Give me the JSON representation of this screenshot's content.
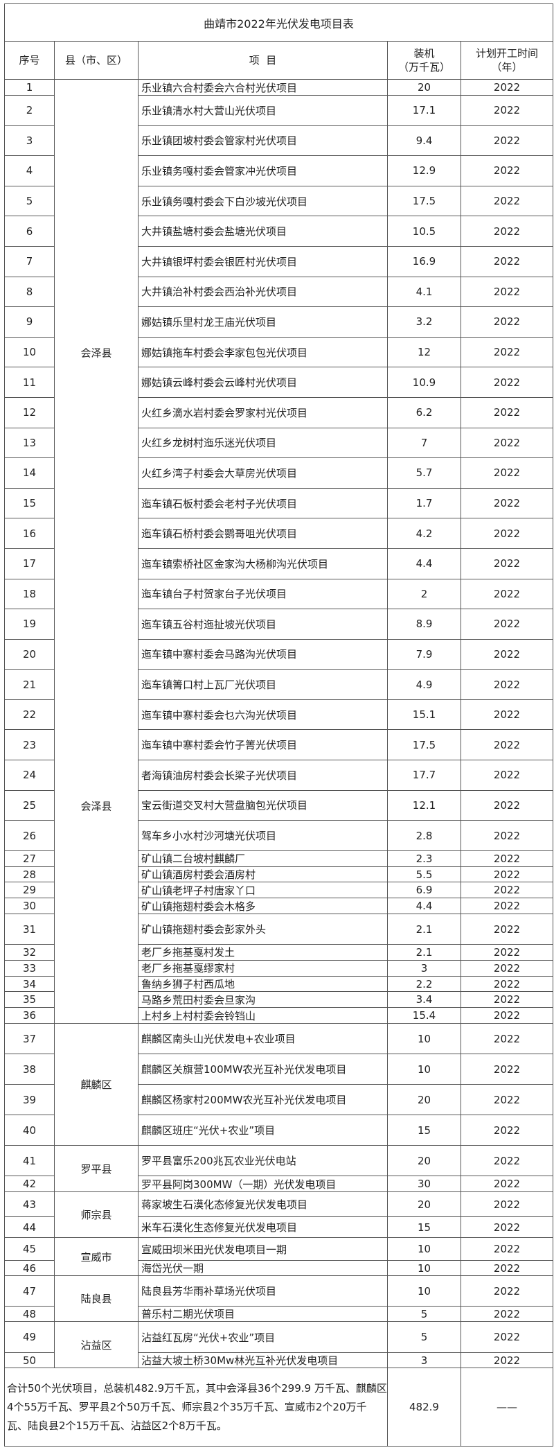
{
  "title": "曲靖市2022年光伏发电项目表",
  "headers": {
    "no": "序号",
    "county": "县（市、区）",
    "project": "项  目",
    "capacity_line1": "装机",
    "capacity_line2": "（万千瓦）",
    "year_line1": "计划开工时间",
    "year_line2": "（年）"
  },
  "county_groups": [
    {
      "labels": [
        "会泽县",
        "会泽县"
      ],
      "from": 1,
      "to": 36
    },
    {
      "labels": [
        "麒麟区"
      ],
      "from": 37,
      "to": 40
    },
    {
      "labels": [
        "罗平县"
      ],
      "from": 41,
      "to": 42
    },
    {
      "labels": [
        "师宗县"
      ],
      "from": 43,
      "to": 44
    },
    {
      "labels": [
        "宣威市"
      ],
      "from": 45,
      "to": 46
    },
    {
      "labels": [
        "陆良县"
      ],
      "from": 47,
      "to": 48
    },
    {
      "labels": [
        "沾益区"
      ],
      "from": 49,
      "to": 50
    }
  ],
  "rows": [
    {
      "no": "1",
      "project": "乐业镇六合村委会六合村光伏项目",
      "capacity": "20",
      "year": "2022"
    },
    {
      "no": "2",
      "project": "乐业镇清水村大营山光伏项目",
      "capacity": "17.1",
      "year": "2022"
    },
    {
      "no": "3",
      "project": "乐业镇团坡村委会管家村光伏项目",
      "capacity": "9.4",
      "year": "2022"
    },
    {
      "no": "4",
      "project": "乐业镇务嘎村委会管家冲光伏项目",
      "capacity": "12.9",
      "year": "2022"
    },
    {
      "no": "5",
      "project": "乐业镇务嘎村委会下白沙坡光伏项目",
      "capacity": "17.5",
      "year": "2022"
    },
    {
      "no": "6",
      "project": "大井镇盐塘村委会盐塘光伏项目",
      "capacity": "10.5",
      "year": "2022"
    },
    {
      "no": "7",
      "project": "大井镇银坪村委会银匠村光伏项目",
      "capacity": "16.9",
      "year": "2022"
    },
    {
      "no": "8",
      "project": "大井镇治补村委会西治补光伏项目",
      "capacity": "4.1",
      "year": "2022"
    },
    {
      "no": "9",
      "project": "娜姑镇乐里村龙王庙光伏项目",
      "capacity": "3.2",
      "year": "2022"
    },
    {
      "no": "10",
      "project": "娜姑镇拖车村委会李家包包光伏项目",
      "capacity": "12",
      "year": "2022"
    },
    {
      "no": "11",
      "project": "娜姑镇云峰村委会云峰村光伏项目",
      "capacity": "10.9",
      "year": "2022"
    },
    {
      "no": "12",
      "project": "火红乡滴水岩村委会罗家村光伏项目",
      "capacity": "6.2",
      "year": "2022"
    },
    {
      "no": "13",
      "project": "火红乡龙树村迤乐迷光伏项目",
      "capacity": "7",
      "year": "2022"
    },
    {
      "no": "14",
      "project": "火红乡湾子村委会大草房光伏项目",
      "capacity": "5.7",
      "year": "2022"
    },
    {
      "no": "15",
      "project": "迤车镇石板村委会老村子光伏项目",
      "capacity": "1.7",
      "year": "2022"
    },
    {
      "no": "16",
      "project": "迤车镇石桥村委会鹦哥咀光伏项目",
      "capacity": "4.2",
      "year": "2022"
    },
    {
      "no": "17",
      "project": "迤车镇索桥社区金家沟大杨柳沟光伏项目",
      "capacity": "4.4",
      "year": "2022"
    },
    {
      "no": "18",
      "project": "迤车镇台子村贺家台子光伏项目",
      "capacity": "2",
      "year": "2022"
    },
    {
      "no": "19",
      "project": "迤车镇五谷村迤扯坡光伏项目",
      "capacity": "8.9",
      "year": "2022"
    },
    {
      "no": "20",
      "project": "迤车镇中寨村委会马路沟光伏项目",
      "capacity": "7.9",
      "year": "2022"
    },
    {
      "no": "21",
      "project": "迤车镇箐口村上瓦厂光伏项目",
      "capacity": "4.9",
      "year": "2022"
    },
    {
      "no": "22",
      "project": "迤车镇中寨村委会乜六沟光伏项目",
      "capacity": "15.1",
      "year": "2022"
    },
    {
      "no": "23",
      "project": "迤车镇中寨村委会竹子箐光伏项目",
      "capacity": "17.5",
      "year": "2022"
    },
    {
      "no": "24",
      "project": "者海镇油房村委会长梁子光伏项目",
      "capacity": "17.7",
      "year": "2022"
    },
    {
      "no": "25",
      "project": "宝云街道交叉村大营盘脑包光伏项目",
      "capacity": "12.1",
      "year": "2022"
    },
    {
      "no": "26",
      "project": "驾车乡小水村沙河塘光伏项目",
      "capacity": "2.8",
      "year": "2022"
    },
    {
      "no": "27",
      "project": "矿山镇二台坡村麒麟厂",
      "capacity": "2.3",
      "year": "2022"
    },
    {
      "no": "28",
      "project": "矿山镇酒房村委会酒房村",
      "capacity": "5.5",
      "year": "2022"
    },
    {
      "no": "29",
      "project": "矿山镇老坪子村唐家丫口",
      "capacity": "6.9",
      "year": "2022"
    },
    {
      "no": "30",
      "project": "矿山镇拖翅村委会木格多",
      "capacity": "4.4",
      "year": "2022"
    },
    {
      "no": "31",
      "project": "矿山镇拖翅村委会彭家外头",
      "capacity": "2.1",
      "year": "2022"
    },
    {
      "no": "32",
      "project": "老厂乡拖基戛村发土",
      "capacity": "2.1",
      "year": "2022"
    },
    {
      "no": "33",
      "project": "老厂乡拖基戛缪家村",
      "capacity": "3",
      "year": "2022"
    },
    {
      "no": "34",
      "project": "鲁纳乡狮子村西瓜地",
      "capacity": "2.2",
      "year": "2022"
    },
    {
      "no": "35",
      "project": "马路乡荒田村委会旦家沟",
      "capacity": "3.4",
      "year": "2022"
    },
    {
      "no": "36",
      "project": "上村乡上村村委会铃铛山",
      "capacity": "15.4",
      "year": "2022"
    },
    {
      "no": "37",
      "project": "麒麟区南头山光伏发电+农业项目",
      "capacity": "10",
      "year": "2022"
    },
    {
      "no": "38",
      "project": "麒麟区关旗营100MW农光互补光伏发电项目",
      "capacity": "10",
      "year": "2022"
    },
    {
      "no": "39",
      "project": "麒麟区杨家村200MW农光互补光伏发电项目",
      "capacity": "20",
      "year": "2022"
    },
    {
      "no": "40",
      "project": "麒麟区班庄“光伏+农业”项目",
      "capacity": "15",
      "year": "2022"
    },
    {
      "no": "41",
      "project": "罗平县富乐200兆瓦农业光伏电站",
      "capacity": "20",
      "year": "2022"
    },
    {
      "no": "42",
      "project": "罗平县阿岗300MW（一期）光伏发电项目",
      "capacity": "30",
      "year": "2022"
    },
    {
      "no": "43",
      "project": "蒋家坡生石漠化态修复光伏发电项目",
      "capacity": "20",
      "year": "2022"
    },
    {
      "no": "44",
      "project": "米车石漠化生态修复光伏发电项目",
      "capacity": "15",
      "year": "2022"
    },
    {
      "no": "45",
      "project": "宣威田坝米田光伏发电项目一期",
      "capacity": "10",
      "year": "2022"
    },
    {
      "no": "46",
      "project": "海岱光伏一期",
      "capacity": "10",
      "year": "2022"
    },
    {
      "no": "47",
      "project": "陆良县芳华雨补草场光伏项目",
      "capacity": "10",
      "year": "2022"
    },
    {
      "no": "48",
      "project": "普乐村二期光伏项目",
      "capacity": "5",
      "year": "2022"
    },
    {
      "no": "49",
      "project": "沾益红瓦房“光伏+农业”项目",
      "capacity": "5",
      "year": "2022"
    },
    {
      "no": "50",
      "project": "沾益大坡土桥30Mw林光互补光伏发电项目",
      "capacity": "3",
      "year": "2022"
    }
  ],
  "summary": {
    "text": "合计50个光伏项目，总装机482.9万千瓦，其中会泽县36个299.9 万千瓦、麒麟区4个55万千瓦、罗平县2个50万千瓦、师宗县2个35万千瓦、宣威市2个20万千瓦、陆良县2个15万千瓦、沾益区2个8万千瓦。",
    "capacity": "482.9",
    "year": "——"
  }
}
